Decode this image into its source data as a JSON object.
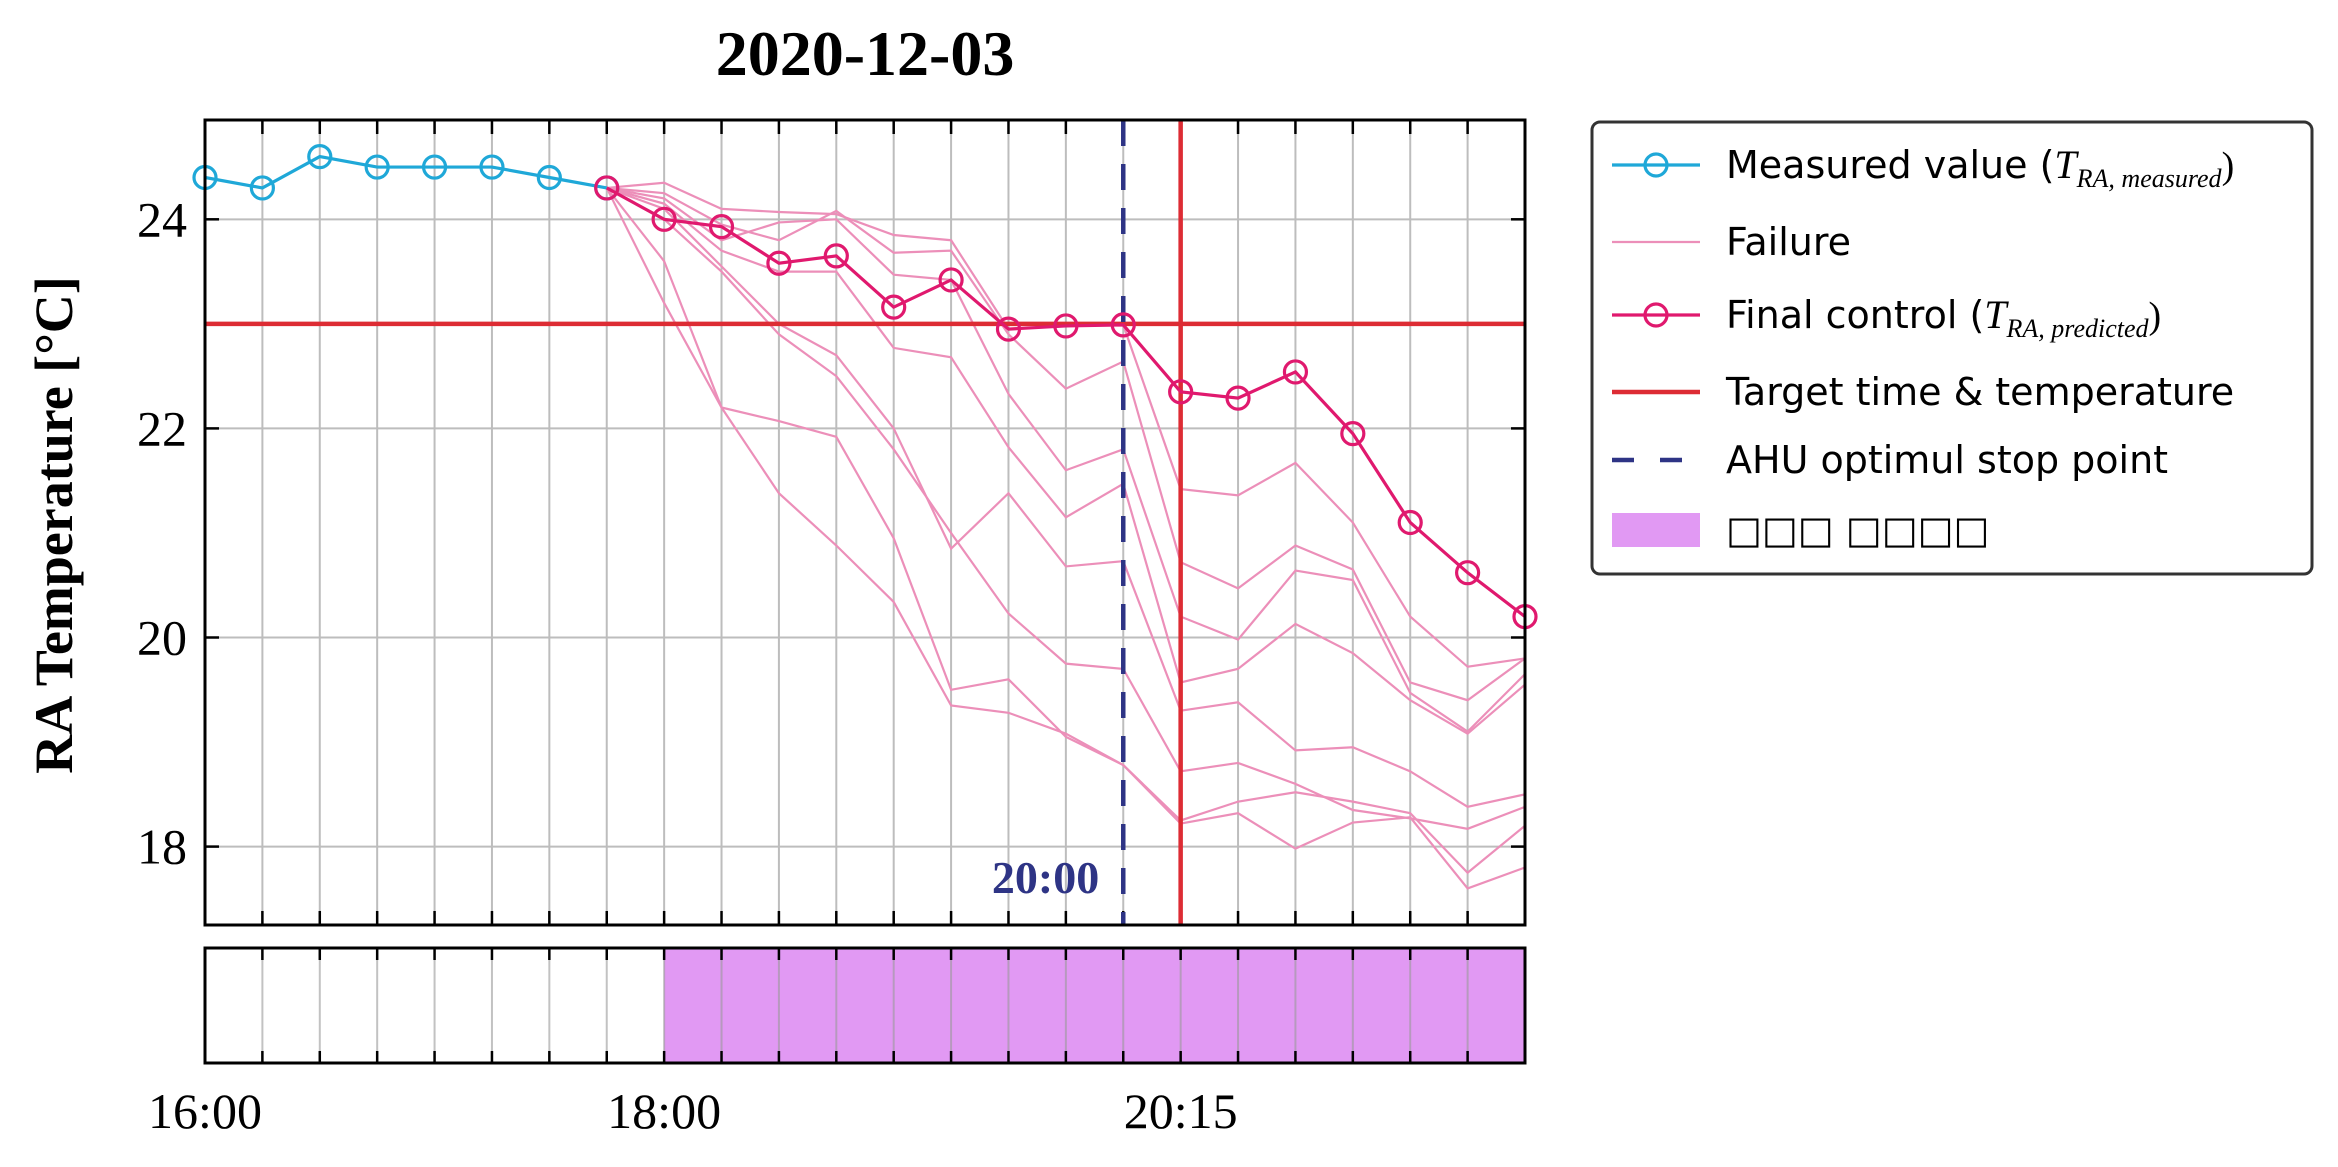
{
  "chart_data": {
    "type": "line",
    "title": "2020-12-03",
    "ylabel": "RA Temperature [°C]",
    "xlabel": "",
    "ylim": [
      17.25,
      24.95
    ],
    "yticks": [
      18,
      20,
      22,
      24
    ],
    "x_ticklabels": [
      {
        "index": 0,
        "label": "16:00"
      },
      {
        "index": 8,
        "label": "18:00"
      },
      {
        "index": 17,
        "label": "20:15"
      }
    ],
    "n_steps": 23,
    "grid": true,
    "legend_position": "outside-right",
    "target_temperature": 23,
    "target_step": 17,
    "stop_step": 16,
    "stop_label": "20:00",
    "shaded_from_step": 8,
    "series": [
      {
        "name": "Measured value",
        "role": "measured",
        "color": "#1fa8d8",
        "x": [
          0,
          1,
          2,
          3,
          4,
          5,
          6,
          7
        ],
        "values": [
          24.4,
          24.3,
          24.6,
          24.5,
          24.5,
          24.5,
          24.4,
          24.3
        ]
      },
      {
        "name": "Final control",
        "role": "final",
        "color": "#e0196e",
        "x": [
          7,
          8,
          9,
          10,
          11,
          12,
          13,
          14,
          15,
          16,
          17,
          18,
          19,
          20,
          21,
          22,
          23
        ],
        "values": [
          24.3,
          24.0,
          23.93,
          23.58,
          23.65,
          23.16,
          23.42,
          22.95,
          22.98,
          22.99,
          22.35,
          22.29,
          22.54,
          21.95,
          21.1,
          20.62,
          20.2
        ]
      }
    ],
    "failure_series": [
      {
        "x_start": 7,
        "values": [
          24.3,
          24.35,
          24.1,
          24.07,
          24.05,
          23.85,
          23.8,
          22.95,
          22.98,
          22.99,
          21.42,
          21.36,
          21.67,
          21.1,
          20.2,
          19.72,
          19.8
        ]
      },
      {
        "x_start": 7,
        "values": [
          24.3,
          24.25,
          23.95,
          23.8,
          24.08,
          23.68,
          23.7,
          22.9,
          22.38,
          22.64,
          20.72,
          20.47,
          20.88,
          20.65,
          19.57,
          19.4,
          19.8
        ]
      },
      {
        "x_start": 7,
        "values": [
          24.3,
          24.2,
          23.8,
          23.97,
          24.0,
          23.47,
          23.42,
          22.33,
          21.6,
          21.8,
          20.2,
          19.98,
          20.64,
          20.55,
          19.47,
          19.1,
          19.65
        ]
      },
      {
        "x_start": 7,
        "values": [
          24.3,
          24.15,
          23.7,
          23.5,
          23.5,
          22.77,
          22.68,
          21.82,
          21.15,
          21.47,
          19.57,
          19.7,
          20.13,
          19.85,
          19.4,
          19.08,
          19.55
        ]
      },
      {
        "x_start": 7,
        "values": [
          24.3,
          24.1,
          23.55,
          23.0,
          22.7,
          22.0,
          20.85,
          21.38,
          20.68,
          20.73,
          19.3,
          19.38,
          18.92,
          18.95,
          18.72,
          18.38,
          18.5
        ]
      },
      {
        "x_start": 7,
        "values": [
          24.3,
          24.0,
          23.5,
          22.9,
          22.5,
          21.8,
          21.0,
          20.23,
          19.75,
          19.7,
          18.72,
          18.8,
          18.6,
          18.35,
          18.27,
          18.17,
          18.38
        ]
      },
      {
        "x_start": 7,
        "values": [
          24.3,
          23.6,
          22.2,
          22.07,
          21.92,
          20.95,
          19.5,
          19.6,
          19.05,
          18.78,
          18.25,
          18.43,
          18.52,
          18.43,
          18.32,
          17.75,
          18.2
        ]
      },
      {
        "x_start": 7,
        "values": [
          24.3,
          23.2,
          22.2,
          21.38,
          20.88,
          20.34,
          19.35,
          19.28,
          19.08,
          18.78,
          18.22,
          18.32,
          17.98,
          18.23,
          18.28,
          17.6,
          17.8
        ]
      }
    ],
    "legend": [
      {
        "key": "measured",
        "label": "Measured value (",
        "math": "T",
        "sub": "RA, measured",
        "close": ")"
      },
      {
        "key": "failure",
        "label": "Failure"
      },
      {
        "key": "final",
        "label": "Final control (",
        "math": "T",
        "sub": "RA, predicted",
        "close": ")"
      },
      {
        "key": "target",
        "label": "Target time & temperature"
      },
      {
        "key": "stop",
        "label": "AHU optimul stop point"
      },
      {
        "key": "shade",
        "label": "□□□ □□□□"
      }
    ],
    "colors": {
      "measured": "#1fa8d8",
      "final": "#e0196e",
      "failure": "#ec8fb9",
      "target": "#dd2c34",
      "stop": "#2e3485",
      "shade": "#e199f3"
    }
  }
}
